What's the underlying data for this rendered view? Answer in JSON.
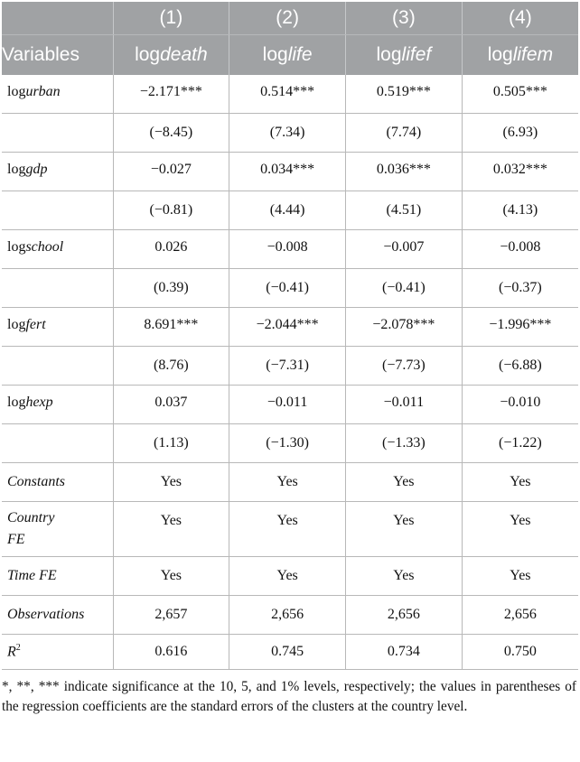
{
  "columns": {
    "numbers": [
      "(1)",
      "(2)",
      "(3)",
      "(4)"
    ],
    "variables_label": "Variables",
    "vars": [
      {
        "prefix": "log",
        "name": "death"
      },
      {
        "prefix": "log",
        "name": "life"
      },
      {
        "prefix": "log",
        "name": "lifef"
      },
      {
        "prefix": "log",
        "name": "lifem"
      }
    ]
  },
  "rows": [
    {
      "prefix": "log",
      "name": "urban",
      "coef": [
        "−2.171***",
        "0.514***",
        "0.519***",
        "0.505***"
      ],
      "se": [
        "(−8.45)",
        "(7.34)",
        "(7.74)",
        "(6.93)"
      ]
    },
    {
      "prefix": "log",
      "name": "gdp",
      "coef": [
        "−0.027",
        "0.034***",
        "0.036***",
        "0.032***"
      ],
      "se": [
        "(−0.81)",
        "(4.44)",
        "(4.51)",
        "(4.13)"
      ]
    },
    {
      "prefix": "log",
      "name": "school",
      "coef": [
        "0.026",
        "−0.008",
        "−0.007",
        "−0.008"
      ],
      "se": [
        "(0.39)",
        "(−0.41)",
        "(−0.41)",
        "(−0.37)"
      ]
    },
    {
      "prefix": "log",
      "name": "fert",
      "coef": [
        "8.691***",
        "−2.044***",
        "−2.078***",
        "−1.996***"
      ],
      "se": [
        "(8.76)",
        "(−7.31)",
        "(−7.73)",
        "(−6.88)"
      ]
    },
    {
      "prefix": "log",
      "name": "hexp",
      "coef": [
        "0.037",
        "−0.011",
        "−0.011",
        "−0.010"
      ],
      "se": [
        "(1.13)",
        "(−1.30)",
        "(−1.33)",
        "(−1.22)"
      ]
    }
  ],
  "controls": [
    {
      "label": "Constants",
      "values": [
        "Yes",
        "Yes",
        "Yes",
        "Yes"
      ]
    },
    {
      "label_line1": "Country",
      "label_line2": "FE",
      "values": [
        "Yes",
        "Yes",
        "Yes",
        "Yes"
      ]
    },
    {
      "label": "Time FE",
      "values": [
        "Yes",
        "Yes",
        "Yes",
        "Yes"
      ]
    }
  ],
  "observations": {
    "label": "Observations",
    "values": [
      "2,657",
      "2,656",
      "2,656",
      "2,656"
    ]
  },
  "r2": {
    "label": "R",
    "sup": "2",
    "values": [
      "0.616",
      "0.745",
      "0.734",
      "0.750"
    ]
  },
  "note": "*, **, *** indicate significance at the 10, 5, and 1% levels, respectively; the values in parentheses of the regression coefficients are the standard errors of the clusters at the country level."
}
